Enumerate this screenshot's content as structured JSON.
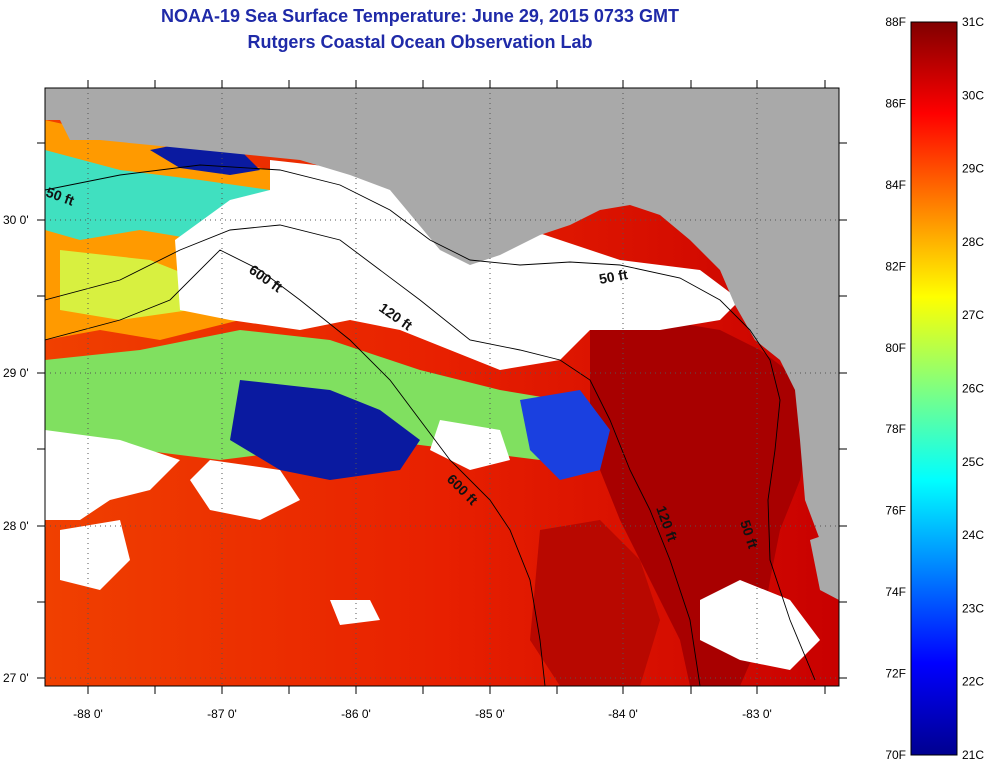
{
  "title": {
    "line1": "NOAA-19 Sea Surface Temperature:  June 29, 2015 0733 GMT",
    "line2": "Rutgers Coastal Ocean Observation Lab"
  },
  "map": {
    "x_ticks": [
      "-88 0'",
      "-87 0'",
      "-86 0'",
      "-85 0'",
      "-84 0'",
      "-83 0'"
    ],
    "y_ticks": [
      "30 0'",
      "29 0'",
      "28 0'",
      "27 0'"
    ],
    "contour_labels": [
      {
        "id": "50ft-west",
        "text": "50 ft"
      },
      {
        "id": "600ft-north",
        "text": "600 ft"
      },
      {
        "id": "120ft-central",
        "text": "120 ft"
      },
      {
        "id": "50ft-bigbend",
        "text": "50 ft"
      },
      {
        "id": "600ft-south",
        "text": "600 ft"
      },
      {
        "id": "120ft-east",
        "text": "120 ft"
      },
      {
        "id": "50ft-east",
        "text": "50 ft"
      }
    ],
    "colors": {
      "land": "#a9a9a9",
      "cloud": "#ffffff",
      "frame": "#000000"
    }
  },
  "colorbar": {
    "fahrenheit_labels": [
      "88F",
      "86F",
      "84F",
      "82F",
      "80F",
      "78F",
      "76F",
      "74F",
      "72F",
      "70F"
    ],
    "celsius_labels": [
      "31C",
      "30C",
      "29C",
      "28C",
      "27C",
      "26C",
      "25C",
      "24C",
      "23C",
      "22C",
      "21C"
    ],
    "stops": [
      "#00008f",
      "#0000ff",
      "#0080ff",
      "#00ffff",
      "#80ff80",
      "#ffff00",
      "#ff8000",
      "#ff0000",
      "#800000"
    ]
  }
}
